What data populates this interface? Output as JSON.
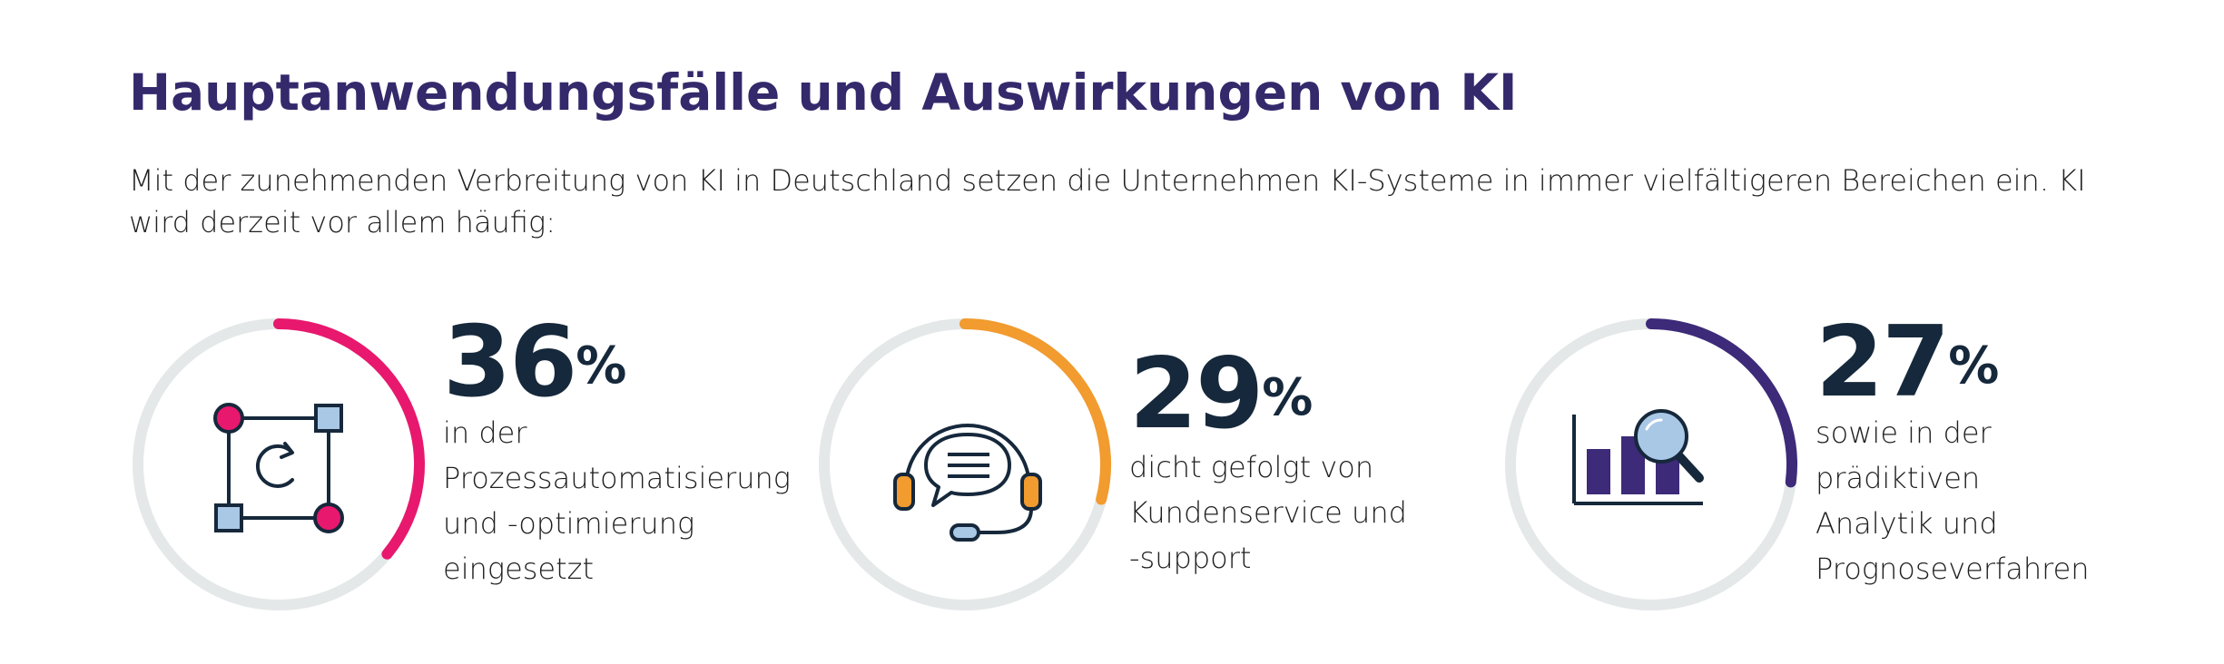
{
  "header": {
    "title": "Hauptanwendungsfälle und Auswirkungen von KI",
    "intro": "Mit der zunehmenden Verbreitung von KI in Deutschland setzen die Unternehmen KI-Systeme in immer vielfältigeren Bereichen ein. KI wird derzeit vor allem häufig:"
  },
  "chart_data": {
    "type": "pie",
    "subtype": "donut-progress",
    "scale_max": 100,
    "track_color": "#e4e8e9",
    "items": [
      {
        "value": 36,
        "value_label": "36",
        "unit": "%",
        "description_lines": [
          "in der",
          "Prozessautomatisierung",
          "und -optimierung",
          "eingesetzt"
        ],
        "color": "#e8186e",
        "icon": "process-automation-icon"
      },
      {
        "value": 29,
        "value_label": "29",
        "unit": "%",
        "description_lines": [
          "dicht gefolgt von",
          "Kundenservice und",
          "-support"
        ],
        "color": "#f29b2e",
        "icon": "customer-service-headset-icon"
      },
      {
        "value": 27,
        "value_label": "27",
        "unit": "%",
        "description_lines": [
          "sowie in der",
          "prädiktiven",
          "Analytik und",
          "Prognoseverfahren"
        ],
        "color": "#3d2a78",
        "icon": "predictive-analytics-icon"
      }
    ]
  }
}
